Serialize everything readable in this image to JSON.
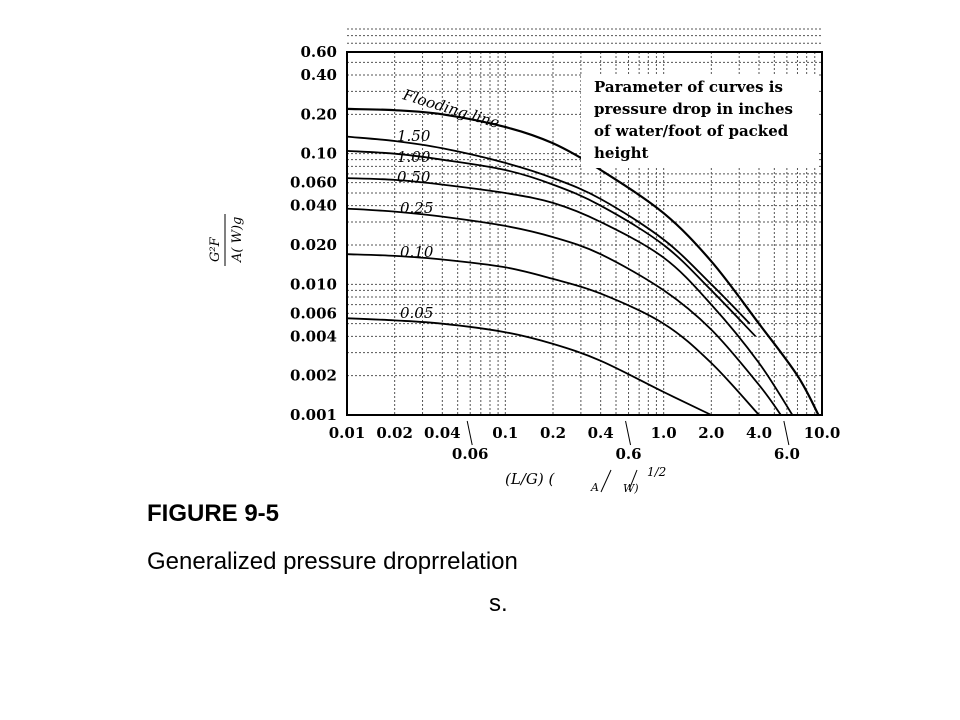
{
  "caption": {
    "figure_label": "FIGURE 9-5",
    "text_line1": "Generalized  pressure  droprrelation",
    "text_line2": "s."
  },
  "chart_data": {
    "type": "line",
    "x_scale": "log",
    "y_scale": "log",
    "xlim": [
      0.01,
      10.0
    ],
    "ylim": [
      0.001,
      0.6
    ],
    "xlabel_main": "(L/G) (",
    "xlabel_sub1": "A",
    "xlabel_sub2": "W)",
    "xlabel_exp": "1/2",
    "ylabel_num": "G²F",
    "ylabel_den": "A( W)g",
    "x_ticks_top_row": [
      "0.01",
      "0.02",
      "0.04",
      "0.1",
      "0.2",
      "0.4",
      "1.0",
      "2.0",
      "4.0",
      "10.0"
    ],
    "x_ticks_bottom_row": [
      "0.06",
      "0.6",
      "6.0"
    ],
    "y_ticks": [
      "0.60",
      "0.40",
      "0.20",
      "0.10",
      "0.060",
      "0.040",
      "0.020",
      "0.010",
      "0.006",
      "0.004",
      "0.002",
      "0.001"
    ],
    "annotation": [
      "Parameter of curves is",
      "pressure drop in inches",
      "of water/foot of packed",
      "height"
    ],
    "grid": true,
    "series": [
      {
        "name": "Flooding line",
        "x": [
          0.01,
          0.02,
          0.04,
          0.1,
          0.2,
          0.4,
          1.0,
          2.0,
          4.0,
          7.0,
          9.5
        ],
        "y": [
          0.22,
          0.215,
          0.2,
          0.16,
          0.12,
          0.075,
          0.035,
          0.015,
          0.005,
          0.002,
          0.001
        ]
      },
      {
        "name": "1.50",
        "x": [
          0.01,
          0.02,
          0.04,
          0.1,
          0.2,
          0.4,
          1.0,
          2.0,
          3.5
        ],
        "y": [
          0.135,
          0.125,
          0.11,
          0.085,
          0.065,
          0.045,
          0.022,
          0.01,
          0.005
        ]
      },
      {
        "name": "1.00",
        "x": [
          0.01,
          0.02,
          0.04,
          0.1,
          0.2,
          0.4,
          1.0,
          2.0,
          3.8
        ],
        "y": [
          0.105,
          0.1,
          0.09,
          0.075,
          0.058,
          0.04,
          0.02,
          0.009,
          0.004
        ]
      },
      {
        "name": "0.50",
        "x": [
          0.01,
          0.02,
          0.04,
          0.1,
          0.2,
          0.4,
          1.0,
          2.0,
          4.0,
          6.5
        ],
        "y": [
          0.065,
          0.063,
          0.058,
          0.05,
          0.042,
          0.03,
          0.016,
          0.007,
          0.0025,
          0.001
        ]
      },
      {
        "name": "0.25",
        "x": [
          0.01,
          0.02,
          0.04,
          0.1,
          0.2,
          0.4,
          1.0,
          2.0,
          4.0,
          5.5
        ],
        "y": [
          0.038,
          0.036,
          0.033,
          0.028,
          0.023,
          0.017,
          0.009,
          0.0045,
          0.0017,
          0.001
        ]
      },
      {
        "name": "0.10",
        "x": [
          0.01,
          0.02,
          0.04,
          0.1,
          0.2,
          0.4,
          1.0,
          2.0,
          4.0
        ],
        "y": [
          0.017,
          0.0165,
          0.0155,
          0.0135,
          0.011,
          0.0085,
          0.005,
          0.0025,
          0.001
        ]
      },
      {
        "name": "0.05",
        "x": [
          0.01,
          0.02,
          0.04,
          0.1,
          0.2,
          0.4,
          1.0,
          2.0
        ],
        "y": [
          0.0055,
          0.0053,
          0.005,
          0.0043,
          0.0035,
          0.0026,
          0.0015,
          0.001
        ]
      }
    ]
  }
}
